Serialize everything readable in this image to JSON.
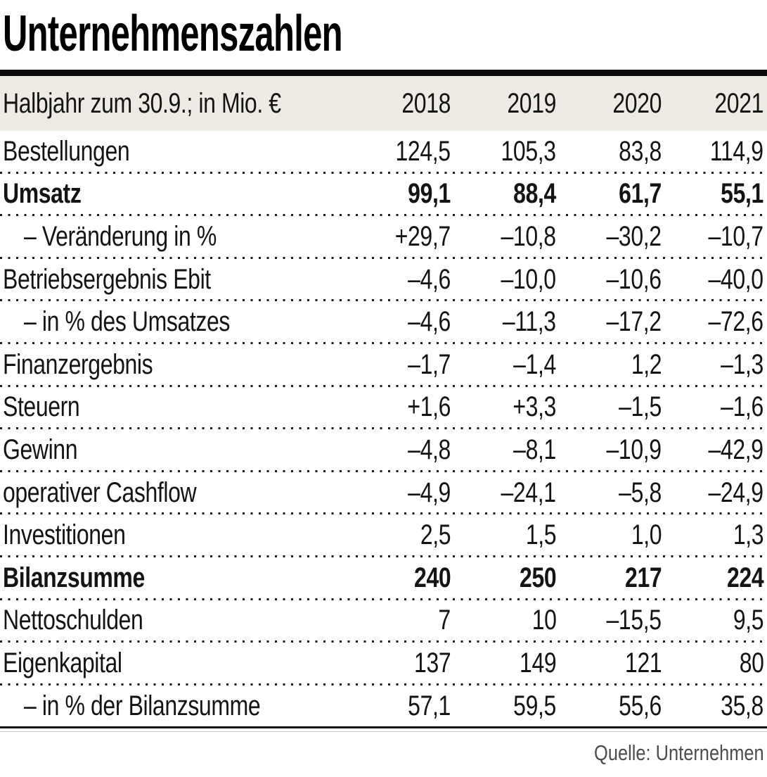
{
  "title": "Unternehmenszahlen",
  "source": "Quelle: Unternehmen",
  "colors": {
    "header_band": "#edebe4",
    "rule": "#0a0a0a",
    "text": "#141414",
    "source_text": "#4d4d4d"
  },
  "table": {
    "header": {
      "label": "Halbjahr zum 30.9.; in Mio. €",
      "years": [
        "2018",
        "2019",
        "2020",
        "2021"
      ]
    },
    "rows": [
      {
        "label": "Bestellungen",
        "values": [
          "124,5",
          "105,3",
          "83,8",
          "114,9"
        ]
      },
      {
        "label": "Umsatz",
        "values": [
          "99,1",
          "88,4",
          "61,7",
          "55,1"
        ]
      },
      {
        "label": "– Veränderung in %",
        "values": [
          "+29,7",
          "–10,8",
          "–30,2",
          "–10,7"
        ]
      },
      {
        "label": "Betriebsergebnis Ebit",
        "values": [
          "–4,6",
          "–10,0",
          "–10,6",
          "–40,0"
        ]
      },
      {
        "label": "– in % des Umsatzes",
        "values": [
          "–4,6",
          "–11,3",
          "–17,2",
          "–72,6"
        ]
      },
      {
        "label": "Finanzergebnis",
        "values": [
          "–1,7",
          "–1,4",
          "1,2",
          "–1,3"
        ]
      },
      {
        "label": "Steuern",
        "values": [
          "+1,6",
          "+3,3",
          "–1,5",
          "–1,6"
        ]
      },
      {
        "label": "Gewinn",
        "values": [
          "–4,8",
          "–8,1",
          "–10,9",
          "–42,9"
        ]
      },
      {
        "label": "operativer Cashflow",
        "values": [
          "–4,9",
          "–24,1",
          "–5,8",
          "–24,9"
        ]
      },
      {
        "label": "Investitionen",
        "values": [
          "2,5",
          "1,5",
          "1,0",
          "1,3"
        ]
      },
      {
        "label": "Bilanzsumme",
        "values": [
          "240",
          "250",
          "217",
          "224"
        ]
      },
      {
        "label": "Nettoschulden",
        "values": [
          "7",
          "10",
          "–15,5",
          "9,5"
        ]
      },
      {
        "label": "Eigenkapital",
        "values": [
          "137",
          "149",
          "121",
          "80"
        ]
      },
      {
        "label": "– in % der Bilanzsumme",
        "values": [
          "57,1",
          "59,5",
          "55,6",
          "35,8"
        ]
      }
    ]
  },
  "chart_data": {
    "type": "table",
    "title": "Unternehmenszahlen",
    "subtitle": "Halbjahr zum 30.9.; in Mio. €",
    "columns": [
      2018,
      2019,
      2020,
      2021
    ],
    "rows": [
      {
        "name": "Bestellungen",
        "values": [
          124.5,
          105.3,
          83.8,
          114.9
        ]
      },
      {
        "name": "Umsatz",
        "values": [
          99.1,
          88.4,
          61.7,
          55.1
        ],
        "emphasis": true
      },
      {
        "name": "Veränderung in %",
        "values": [
          29.7,
          -10.8,
          -30.2,
          -10.7
        ]
      },
      {
        "name": "Betriebsergebnis Ebit",
        "values": [
          -4.6,
          -10.0,
          -10.6,
          -40.0
        ]
      },
      {
        "name": "in % des Umsatzes",
        "values": [
          -4.6,
          -11.3,
          -17.2,
          -72.6
        ]
      },
      {
        "name": "Finanzergebnis",
        "values": [
          -1.7,
          -1.4,
          1.2,
          -1.3
        ]
      },
      {
        "name": "Steuern",
        "values": [
          1.6,
          3.3,
          -1.5,
          -1.6
        ]
      },
      {
        "name": "Gewinn",
        "values": [
          -4.8,
          -8.1,
          -10.9,
          -42.9
        ]
      },
      {
        "name": "operativer Cashflow",
        "values": [
          -4.9,
          -24.1,
          -5.8,
          -24.9
        ]
      },
      {
        "name": "Investitionen",
        "values": [
          2.5,
          1.5,
          1.0,
          1.3
        ]
      },
      {
        "name": "Bilanzsumme",
        "values": [
          240,
          250,
          217,
          224
        ],
        "emphasis": true
      },
      {
        "name": "Nettoschulden",
        "values": [
          7,
          10,
          -15.5,
          9.5
        ]
      },
      {
        "name": "Eigenkapital",
        "values": [
          137,
          149,
          121,
          80
        ]
      },
      {
        "name": "in % der Bilanzsumme",
        "values": [
          57.1,
          59.5,
          55.6,
          35.8
        ]
      }
    ],
    "source": "Quelle: Unternehmen"
  }
}
